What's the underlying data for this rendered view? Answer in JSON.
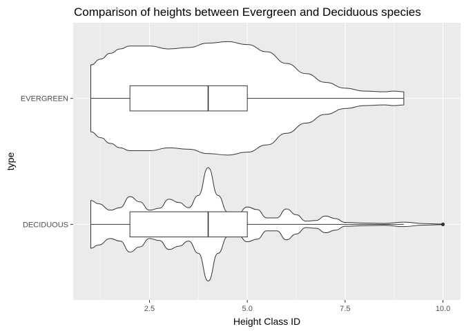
{
  "chart_data": {
    "type": "violin",
    "title": "Comparison of heights between Evergreen and Deciduous species",
    "xlabel": "Height Class ID",
    "ylabel": "type",
    "xlim": [
      0.55,
      10.45
    ],
    "x_ticks": [
      2.5,
      5.0,
      7.5,
      10.0
    ],
    "x_tick_labels": [
      "2.5",
      "5.0",
      "7.5",
      "10.0"
    ],
    "categories": [
      "DECIDUOUS",
      "EVERGREEN"
    ],
    "grid": true,
    "legend": "none",
    "series": [
      {
        "name": "EVERGREEN",
        "box": {
          "whisker_low": 1,
          "q1": 2,
          "median": 4,
          "q3": 5,
          "whisker_high": 9
        },
        "outliers": [],
        "density": [
          [
            1.0,
            0.23
          ],
          [
            1.25,
            0.27
          ],
          [
            1.5,
            0.31
          ],
          [
            1.75,
            0.34
          ],
          [
            2.0,
            0.36
          ],
          [
            2.5,
            0.36
          ],
          [
            3.0,
            0.34
          ],
          [
            3.5,
            0.35
          ],
          [
            4.0,
            0.38
          ],
          [
            4.5,
            0.39
          ],
          [
            5.0,
            0.37
          ],
          [
            5.5,
            0.32
          ],
          [
            6.0,
            0.24
          ],
          [
            6.5,
            0.17
          ],
          [
            7.0,
            0.11
          ],
          [
            7.5,
            0.07
          ],
          [
            8.0,
            0.05
          ],
          [
            8.5,
            0.045
          ],
          [
            8.75,
            0.05
          ],
          [
            9.0,
            0.045
          ]
        ]
      },
      {
        "name": "DECIDUOUS",
        "box": {
          "whisker_low": 1,
          "q1": 2,
          "median": 4,
          "q3": 5,
          "whisker_high": 9
        },
        "outliers": [
          10
        ],
        "density": [
          [
            1.0,
            0.37
          ],
          [
            1.2,
            0.32
          ],
          [
            1.5,
            0.22
          ],
          [
            1.75,
            0.26
          ],
          [
            2.0,
            0.43
          ],
          [
            2.25,
            0.35
          ],
          [
            2.5,
            0.22
          ],
          [
            2.75,
            0.25
          ],
          [
            3.0,
            0.39
          ],
          [
            3.25,
            0.34
          ],
          [
            3.5,
            0.26
          ],
          [
            3.75,
            0.45
          ],
          [
            4.0,
            0.88
          ],
          [
            4.25,
            0.45
          ],
          [
            4.5,
            0.19
          ],
          [
            4.75,
            0.16
          ],
          [
            5.0,
            0.27
          ],
          [
            5.25,
            0.23
          ],
          [
            5.5,
            0.1
          ],
          [
            5.75,
            0.1
          ],
          [
            6.0,
            0.24
          ],
          [
            6.25,
            0.15
          ],
          [
            6.5,
            0.05
          ],
          [
            6.75,
            0.06
          ],
          [
            7.0,
            0.13
          ],
          [
            7.25,
            0.09
          ],
          [
            7.5,
            0.03
          ],
          [
            8.0,
            0.02
          ],
          [
            8.5,
            0.015
          ],
          [
            9.0,
            0.035
          ],
          [
            9.5,
            0.012
          ],
          [
            10.0,
            0.005
          ]
        ]
      }
    ]
  }
}
